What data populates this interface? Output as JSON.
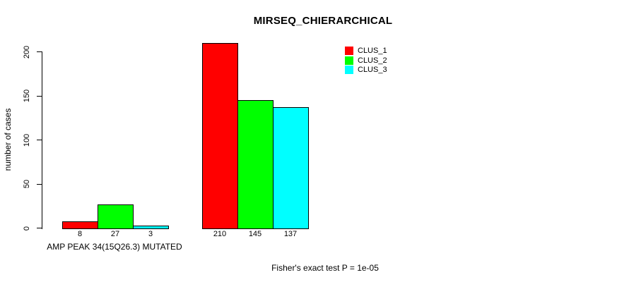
{
  "chart_data": {
    "type": "bar",
    "title": "MIRSEQ_CHIERARCHICAL",
    "xlabel": "AMP PEAK 34(15Q26.3) MUTATED",
    "ylabel": "number of cases",
    "annotation": "Fisher's exact test P = 1e-05",
    "yticks": [
      0,
      50,
      100,
      150,
      200
    ],
    "ylim": [
      0,
      210
    ],
    "grid": false,
    "legend_position": "top-right",
    "groups": 2,
    "series": [
      {
        "name": "CLUS_1",
        "color": "#ff0000",
        "values": [
          8,
          210
        ]
      },
      {
        "name": "CLUS_2",
        "color": "#00ff00",
        "values": [
          27,
          145
        ]
      },
      {
        "name": "CLUS_3",
        "color": "#00ffff",
        "values": [
          3,
          137
        ]
      }
    ],
    "bar_value_labels": [
      [
        "8",
        "27",
        "3"
      ],
      [
        "210",
        "145",
        "137"
      ]
    ]
  }
}
